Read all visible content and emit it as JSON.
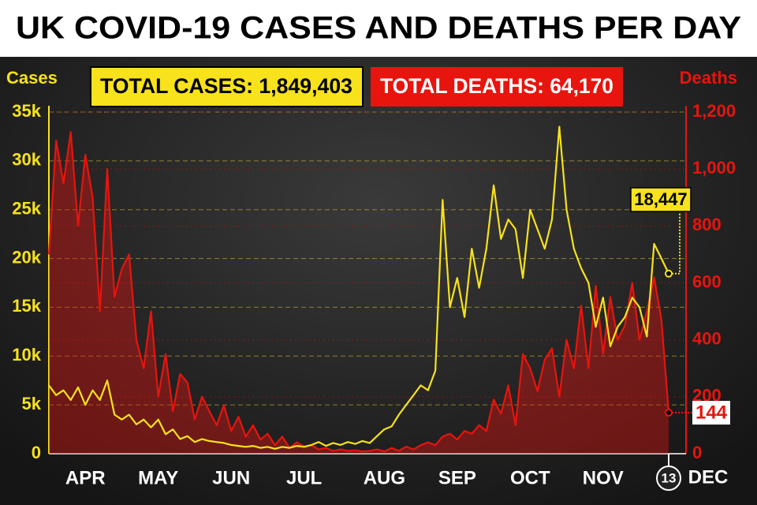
{
  "chart_data": {
    "type": "line",
    "title": "UK COVID-19 CASES AND DEATHS PER DAY",
    "annotations": [
      "TOTAL CASES: 1,849,403",
      "TOTAL DEATHS: 64,170",
      "DEC"
    ],
    "categories": [
      null,
      null,
      null,
      null,
      null,
      "APR",
      null,
      null,
      null,
      null,
      null,
      null,
      null,
      null,
      null,
      "MAY",
      null,
      null,
      null,
      null,
      null,
      null,
      null,
      null,
      null,
      "JUN",
      null,
      null,
      null,
      null,
      null,
      null,
      null,
      null,
      null,
      "JUL",
      null,
      null,
      null,
      null,
      null,
      null,
      null,
      null,
      null,
      null,
      "AUG",
      null,
      null,
      null,
      null,
      null,
      null,
      null,
      null,
      null,
      "SEP",
      null,
      null,
      null,
      null,
      null,
      null,
      null,
      null,
      null,
      "OCT",
      null,
      null,
      null,
      null,
      null,
      null,
      null,
      null,
      null,
      "NOV",
      null,
      null,
      null,
      null,
      null,
      null,
      null,
      null,
      "13"
    ],
    "series": [
      {
        "name": "Cases",
        "color": "#f7e21c",
        "values": [
          7000,
          6000,
          6500,
          5500,
          6800,
          5000,
          6500,
          5500,
          7500,
          4000,
          3500,
          4000,
          3000,
          3500,
          2700,
          3500,
          2000,
          2500,
          1500,
          1800,
          1200,
          1500,
          1300,
          1200,
          1100,
          900,
          800,
          700,
          800,
          600,
          700,
          500,
          700,
          600,
          800,
          700,
          900,
          1200,
          800,
          1100,
          900,
          1200,
          1000,
          1300,
          1100,
          1800,
          2500,
          2800,
          4000,
          5000,
          6000,
          7000,
          6500,
          8500,
          26000,
          15000,
          18000,
          14000,
          21000,
          17000,
          21000,
          27500,
          22000,
          24000,
          23000,
          18000,
          25000,
          23000,
          21000,
          24000,
          33500,
          25000,
          21000,
          19000,
          17500,
          13000,
          16000,
          11000,
          13000,
          14000,
          16000,
          15000,
          12000,
          21500,
          20000,
          18447
        ],
        "value_labels": [
          null,
          null,
          null,
          null,
          null,
          null,
          null,
          null,
          null,
          null,
          null,
          null,
          null,
          null,
          null,
          null,
          null,
          null,
          null,
          null,
          null,
          null,
          null,
          null,
          null,
          null,
          null,
          null,
          null,
          null,
          null,
          null,
          null,
          null,
          null,
          null,
          null,
          null,
          null,
          null,
          null,
          null,
          null,
          null,
          null,
          null,
          null,
          null,
          null,
          null,
          null,
          null,
          null,
          null,
          null,
          null,
          null,
          null,
          null,
          null,
          null,
          null,
          null,
          null,
          null,
          null,
          null,
          null,
          null,
          null,
          null,
          null,
          null,
          null,
          null,
          null,
          null,
          null,
          null,
          null,
          null,
          null,
          null,
          null,
          null,
          "18,447"
        ]
      },
      {
        "name": "Deaths",
        "color": "#e8140e",
        "axis": "y2",
        "values": [
          700,
          1100,
          950,
          1130,
          800,
          1050,
          900,
          500,
          1000,
          550,
          650,
          700,
          400,
          300,
          500,
          200,
          350,
          150,
          280,
          250,
          120,
          200,
          150,
          100,
          170,
          80,
          130,
          60,
          100,
          50,
          70,
          30,
          60,
          20,
          40,
          25,
          30,
          15,
          20,
          10,
          15,
          10,
          12,
          8,
          10,
          15,
          8,
          20,
          10,
          25,
          15,
          30,
          40,
          30,
          60,
          70,
          50,
          80,
          70,
          100,
          80,
          190,
          140,
          240,
          100,
          350,
          300,
          220,
          330,
          370,
          200,
          400,
          300,
          520,
          300,
          590,
          350,
          550,
          400,
          450,
          600,
          400,
          500,
          620,
          470,
          144
        ],
        "value_labels": [
          null,
          null,
          null,
          null,
          null,
          null,
          null,
          null,
          null,
          null,
          null,
          null,
          null,
          null,
          null,
          null,
          null,
          null,
          null,
          null,
          null,
          null,
          null,
          null,
          null,
          null,
          null,
          null,
          null,
          null,
          null,
          null,
          null,
          null,
          null,
          null,
          null,
          null,
          null,
          null,
          null,
          null,
          null,
          null,
          null,
          null,
          null,
          null,
          null,
          null,
          null,
          null,
          null,
          null,
          null,
          null,
          null,
          null,
          null,
          null,
          null,
          null,
          null,
          null,
          null,
          null,
          null,
          null,
          null,
          null,
          null,
          null,
          null,
          null,
          null,
          null,
          null,
          null,
          null,
          null,
          null,
          null,
          null,
          null,
          null,
          "144"
        ]
      }
    ],
    "ylim": [
      0,
      35000
    ],
    "yticks": [
      0,
      {
        "value": 5000,
        "label": "5k"
      },
      {
        "value": 10000,
        "label": "10k"
      },
      {
        "value": 15000,
        "label": "15k"
      },
      {
        "value": 20000,
        "label": "20k"
      },
      {
        "value": 25000,
        "label": "25k"
      },
      {
        "value": 30000,
        "label": "30k"
      },
      {
        "value": 35000,
        "label": "35k"
      }
    ],
    "y2lim": [
      0,
      1200
    ],
    "y2ticks": [
      0,
      200,
      400,
      600,
      800,
      {
        "value": 1000,
        "label": "1,000"
      },
      {
        "value": 1200,
        "label": "1,200"
      }
    ],
    "grid": true
  }
}
